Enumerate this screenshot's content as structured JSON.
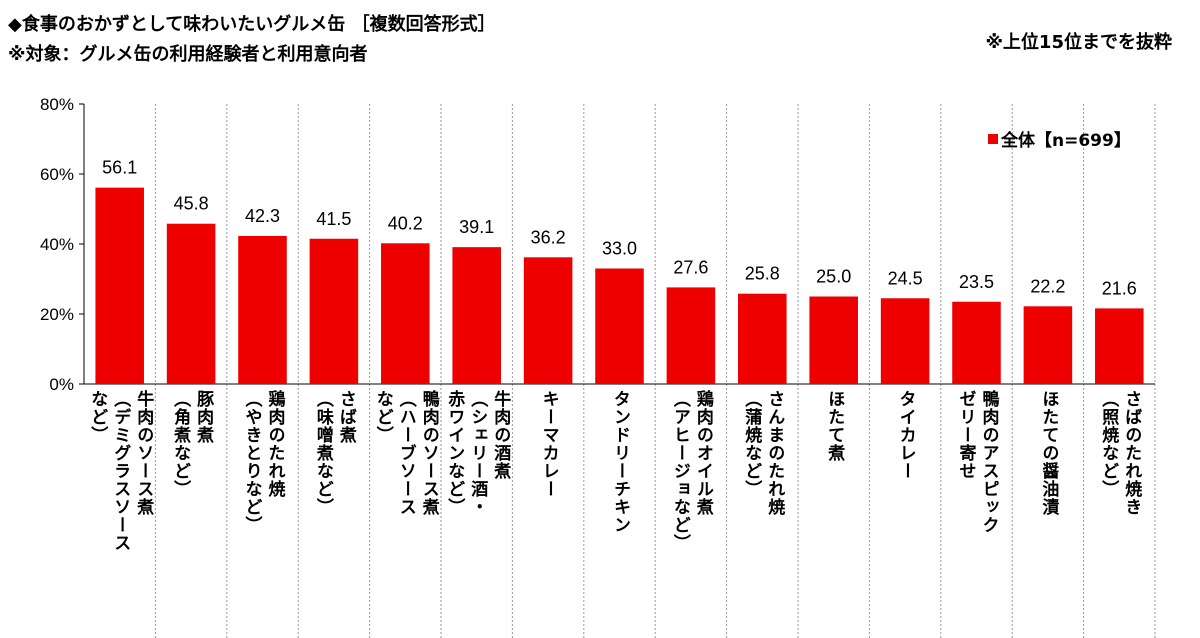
{
  "title_line1": "◆食事のおかずとして味わいたいグルメ缶 ［複数回答形式］",
  "title_line2": "※対象：グルメ缶の利用経験者と利用意向者",
  "note": "※上位15位までを抜粋",
  "legend_label": "全体【n=699】",
  "chart_data": {
    "type": "bar",
    "ylim": [
      0,
      80
    ],
    "yticks": [
      "0%",
      "20%",
      "40%",
      "60%",
      "80%"
    ],
    "ytick_values": [
      0,
      20,
      40,
      60,
      80
    ],
    "grid": true,
    "legend_position": "top-right",
    "bar_color": "#ee0000",
    "categories": [
      [
        "牛肉のソース煮",
        "（デミグラスソース",
        "など）"
      ],
      [
        "豚肉煮",
        "（角煮など）"
      ],
      [
        "鶏肉のたれ焼",
        "（やきとりなど）"
      ],
      [
        "さば煮",
        "（味噌煮など）"
      ],
      [
        "鴨肉のソース煮",
        "（ハーブソース",
        "など）"
      ],
      [
        "牛肉の酒煮",
        "（シェリー酒・",
        "赤ワインなど）"
      ],
      [
        "キーマカレー"
      ],
      [
        "タンドリーチキン"
      ],
      [
        "鶏肉のオイル煮",
        "（アヒージョなど）"
      ],
      [
        "さんまのたれ焼",
        "（蒲焼など）"
      ],
      [
        "ほたて煮"
      ],
      [
        "タイカレー"
      ],
      [
        "鴨肉のアスピック",
        "ゼリー寄せ"
      ],
      [
        "ほたての醤油漬"
      ],
      [
        "さばのたれ焼き",
        "（照焼など）"
      ]
    ],
    "series": [
      {
        "name": "全体【n=699】",
        "values": [
          56.1,
          45.8,
          42.3,
          41.5,
          40.2,
          39.1,
          36.2,
          33.0,
          27.6,
          25.8,
          25.0,
          24.5,
          23.5,
          22.2,
          21.6
        ]
      }
    ],
    "value_labels": [
      "56.1",
      "45.8",
      "42.3",
      "41.5",
      "40.2",
      "39.1",
      "36.2",
      "33.0",
      "27.6",
      "25.8",
      "25.0",
      "24.5",
      "23.5",
      "22.2",
      "21.6"
    ]
  }
}
